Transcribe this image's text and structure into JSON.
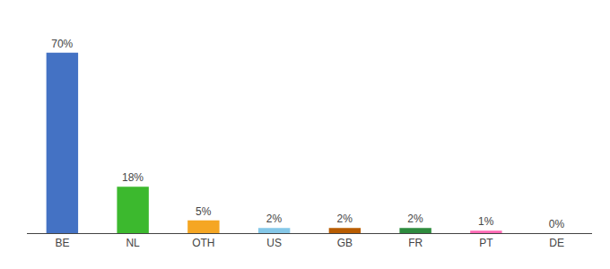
{
  "chart_data": {
    "type": "bar",
    "categories": [
      "BE",
      "NL",
      "OTH",
      "US",
      "GB",
      "FR",
      "PT",
      "DE"
    ],
    "values": [
      70,
      18,
      5,
      2,
      2,
      2,
      1,
      0
    ],
    "value_labels": [
      "70%",
      "18%",
      "5%",
      "2%",
      "2%",
      "2%",
      "1%",
      "0%"
    ],
    "data_labels": true,
    "colors": [
      "#4472C4",
      "#3CB92E",
      "#F5A623",
      "#85C8E8",
      "#B85C00",
      "#2E8B3E",
      "#FF69B4",
      "#DDDDDD"
    ],
    "ylim": [
      0,
      80
    ],
    "grid": false,
    "tick_labels": "x"
  }
}
